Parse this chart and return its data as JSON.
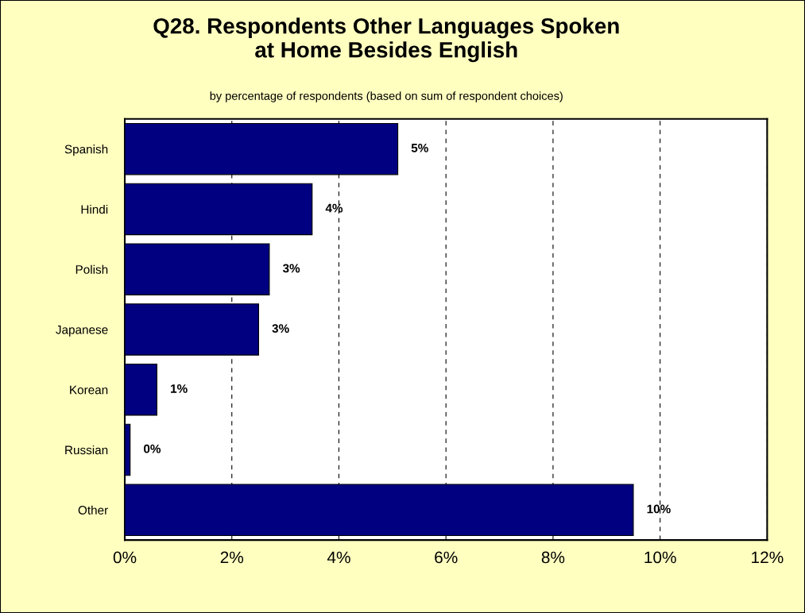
{
  "chart_data": {
    "type": "bar",
    "orientation": "horizontal",
    "title": "Q28. Respondents Other Languages Spoken\nat Home Besides English",
    "subtitle": "by percentage of respondents (based on sum of respondent choices)",
    "categories": [
      "Spanish",
      "Hindi",
      "Polish",
      "Japanese",
      "Korean",
      "Russian",
      "Other"
    ],
    "values": [
      5.1,
      3.5,
      2.7,
      2.5,
      0.6,
      0.1,
      9.5
    ],
    "value_labels": [
      "5%",
      "4%",
      "3%",
      "3%",
      "1%",
      "0%",
      "10%"
    ],
    "color": "#000080",
    "xlim": [
      0,
      12
    ],
    "xticks": [
      {
        "value": 0,
        "label": "0%"
      },
      {
        "value": 2,
        "label": "2%"
      },
      {
        "value": 4,
        "label": "4%"
      },
      {
        "value": 6,
        "label": "6%"
      },
      {
        "value": 8,
        "label": "8%"
      },
      {
        "value": 10,
        "label": "10%"
      },
      {
        "value": 12,
        "label": "12%"
      }
    ],
    "grid": "x",
    "legend": false
  }
}
